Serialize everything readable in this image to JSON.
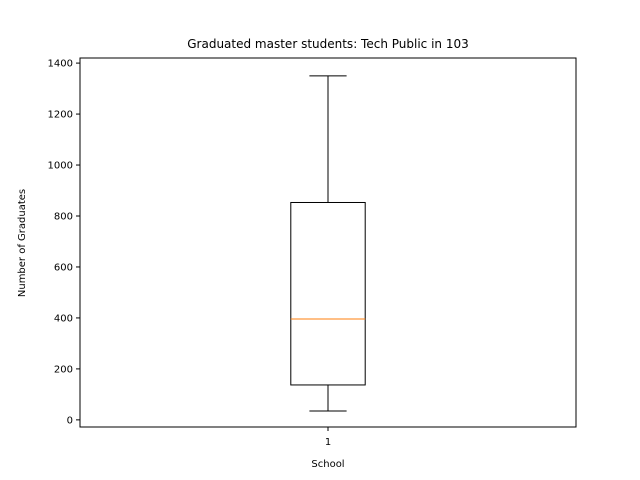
{
  "chart_data": {
    "type": "box",
    "title": "Graduated master students: Tech Public in 103",
    "xlabel": "School",
    "ylabel": "Number of Graduates",
    "ylim": [
      -28,
      1420
    ],
    "yticks": [
      0,
      200,
      400,
      600,
      800,
      1000,
      1200,
      1400
    ],
    "categories": [
      "1"
    ],
    "boxes": [
      {
        "category": "1",
        "whisker_low": 35,
        "q1": 137,
        "median": 396,
        "q3": 853,
        "whisker_high": 1350
      }
    ],
    "grid": false,
    "colors": {
      "box": "#000000",
      "median": "#ff7f0e",
      "axes": "#000000"
    }
  }
}
